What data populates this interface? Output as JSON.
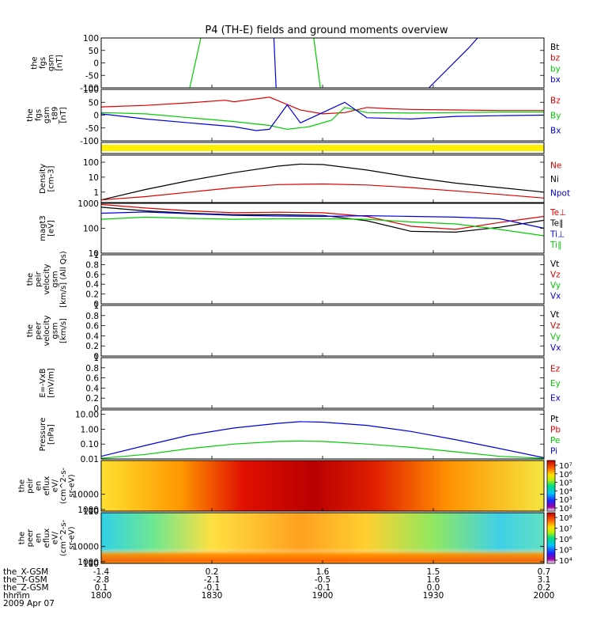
{
  "title": "P4 (TH-E) fields and ground moments overview",
  "colors": {
    "black": "#000000",
    "red": "#dd0000",
    "green": "#00cc00",
    "blue": "#0000dd",
    "yellow": "#ffee00"
  },
  "chart_data": [
    {
      "id": "fgs",
      "type": "line",
      "ylabel_lines": [
        "the",
        "fgs",
        "gsm",
        "[nT]"
      ],
      "ylim": [
        -100,
        100
      ],
      "yticks": [
        -100,
        -50,
        0,
        50,
        100
      ],
      "legend": [
        {
          "label": "Bt",
          "color": "black"
        },
        {
          "label": "bz",
          "color": "red"
        },
        {
          "label": "by",
          "color": "green"
        },
        {
          "label": "bx",
          "color": "blue"
        }
      ],
      "series": [
        {
          "color": "green",
          "points": [
            [
              0.2,
              -100
            ],
            [
              0.225,
              100
            ]
          ]
        },
        {
          "color": "blue",
          "points": [
            [
              0.39,
              100
            ],
            [
              0.395,
              -100
            ]
          ]
        },
        {
          "color": "green",
          "points": [
            [
              0.48,
              100
            ],
            [
              0.495,
              -100
            ]
          ]
        },
        {
          "color": "blue",
          "points": [
            [
              0.74,
              -100
            ],
            [
              0.83,
              60
            ],
            [
              0.85,
              100
            ]
          ]
        }
      ]
    },
    {
      "id": "fgs2",
      "type": "line",
      "ylabel_lines": [
        "the",
        "fgs",
        "gsm",
        "_t89",
        "[nT]"
      ],
      "ylim": [
        -100,
        100
      ],
      "yticks": [
        -100,
        -50,
        0,
        50,
        100
      ],
      "legend": [
        {
          "label": "Bz",
          "color": "red"
        },
        {
          "label": "By",
          "color": "green"
        },
        {
          "label": "Bx",
          "color": "blue"
        }
      ],
      "series": [
        {
          "color": "red",
          "points": [
            [
              0.0,
              32
            ],
            [
              0.1,
              38
            ],
            [
              0.2,
              48
            ],
            [
              0.28,
              58
            ],
            [
              0.3,
              52
            ],
            [
              0.38,
              70
            ],
            [
              0.45,
              20
            ],
            [
              0.5,
              5
            ],
            [
              0.55,
              10
            ],
            [
              0.6,
              30
            ],
            [
              0.65,
              25
            ],
            [
              0.7,
              22
            ],
            [
              0.8,
              20
            ],
            [
              0.9,
              18
            ],
            [
              1.0,
              18
            ]
          ]
        },
        {
          "color": "green",
          "points": [
            [
              0.0,
              10
            ],
            [
              0.1,
              5
            ],
            [
              0.2,
              -10
            ],
            [
              0.3,
              -25
            ],
            [
              0.38,
              -40
            ],
            [
              0.42,
              -55
            ],
            [
              0.47,
              -45
            ],
            [
              0.52,
              -20
            ],
            [
              0.55,
              30
            ],
            [
              0.6,
              10
            ],
            [
              0.7,
              8
            ],
            [
              0.8,
              10
            ],
            [
              0.9,
              12
            ],
            [
              1.0,
              12
            ]
          ]
        },
        {
          "color": "blue",
          "points": [
            [
              0.0,
              5
            ],
            [
              0.1,
              -15
            ],
            [
              0.2,
              -30
            ],
            [
              0.3,
              -45
            ],
            [
              0.35,
              -60
            ],
            [
              0.38,
              -55
            ],
            [
              0.42,
              40
            ],
            [
              0.45,
              -30
            ],
            [
              0.5,
              10
            ],
            [
              0.55,
              50
            ],
            [
              0.6,
              -10
            ],
            [
              0.7,
              -15
            ],
            [
              0.8,
              -5
            ],
            [
              0.9,
              -2
            ],
            [
              1.0,
              0
            ]
          ]
        }
      ]
    },
    {
      "id": "flag",
      "type": "band",
      "color": "yellow"
    },
    {
      "id": "density",
      "type": "line",
      "log": true,
      "ylabel_lines": [
        "Density",
        "[cm-3]"
      ],
      "ylim": [
        0.2,
        300
      ],
      "yticks": [
        1,
        10,
        100
      ],
      "legend": [
        {
          "label": "Ne",
          "color": "red"
        },
        {
          "label": "Ni",
          "color": "black"
        },
        {
          "label": "Npot",
          "color": "blue"
        }
      ],
      "series": [
        {
          "color": "black",
          "points": [
            [
              0.0,
              0.3
            ],
            [
              0.1,
              1.5
            ],
            [
              0.2,
              6
            ],
            [
              0.3,
              20
            ],
            [
              0.4,
              55
            ],
            [
              0.45,
              75
            ],
            [
              0.5,
              70
            ],
            [
              0.6,
              30
            ],
            [
              0.7,
              10
            ],
            [
              0.8,
              4
            ],
            [
              0.9,
              2
            ],
            [
              1.0,
              1
            ]
          ]
        },
        {
          "color": "red",
          "points": [
            [
              0.0,
              0.3
            ],
            [
              0.1,
              0.5
            ],
            [
              0.2,
              1
            ],
            [
              0.3,
              2
            ],
            [
              0.4,
              3.2
            ],
            [
              0.5,
              3.5
            ],
            [
              0.6,
              3
            ],
            [
              0.7,
              2
            ],
            [
              0.8,
              1.2
            ],
            [
              0.9,
              0.7
            ],
            [
              1.0,
              0.4
            ]
          ]
        }
      ]
    },
    {
      "id": "temp",
      "type": "line",
      "log": true,
      "ylabel_lines": [
        "magt3",
        "[eV]"
      ],
      "ylim": [
        10,
        1000
      ],
      "yticks": [
        10,
        100,
        1000
      ],
      "legend": [
        {
          "label": "Te⊥",
          "color": "red"
        },
        {
          "label": "Te∥",
          "color": "black"
        },
        {
          "label": "Ti⊥",
          "color": "blue"
        },
        {
          "label": "Ti∥",
          "color": "green"
        }
      ],
      "series": [
        {
          "color": "red",
          "points": [
            [
              0.0,
              900
            ],
            [
              0.1,
              650
            ],
            [
              0.2,
              500
            ],
            [
              0.3,
              420
            ],
            [
              0.4,
              440
            ],
            [
              0.5,
              420
            ],
            [
              0.6,
              300
            ],
            [
              0.7,
              120
            ],
            [
              0.8,
              90
            ],
            [
              0.9,
              170
            ],
            [
              1.0,
              300
            ]
          ]
        },
        {
          "color": "black",
          "points": [
            [
              0.0,
              700
            ],
            [
              0.1,
              500
            ],
            [
              0.2,
              400
            ],
            [
              0.3,
              350
            ],
            [
              0.4,
              350
            ],
            [
              0.5,
              330
            ],
            [
              0.6,
              200
            ],
            [
              0.7,
              75
            ],
            [
              0.8,
              70
            ],
            [
              0.9,
              110
            ],
            [
              1.0,
              210
            ]
          ]
        },
        {
          "color": "blue",
          "points": [
            [
              0.0,
              400
            ],
            [
              0.1,
              450
            ],
            [
              0.2,
              380
            ],
            [
              0.3,
              330
            ],
            [
              0.4,
              310
            ],
            [
              0.5,
              300
            ],
            [
              0.6,
              320
            ],
            [
              0.7,
              300
            ],
            [
              0.8,
              280
            ],
            [
              0.9,
              240
            ],
            [
              1.0,
              100
            ]
          ]
        },
        {
          "color": "green",
          "points": [
            [
              0.0,
              230
            ],
            [
              0.1,
              280
            ],
            [
              0.2,
              250
            ],
            [
              0.3,
              230
            ],
            [
              0.4,
              240
            ],
            [
              0.5,
              240
            ],
            [
              0.6,
              230
            ],
            [
              0.7,
              180
            ],
            [
              0.8,
              150
            ],
            [
              0.9,
              90
            ],
            [
              1.0,
              50
            ]
          ]
        }
      ]
    },
    {
      "id": "peir_vel",
      "type": "line",
      "ylabel_lines": [
        "the",
        "peir",
        "velocity",
        "gsm",
        "[km/s] (All Qs)"
      ],
      "ylim": [
        0,
        1
      ],
      "yticks": [
        0.0,
        0.2,
        0.4,
        0.6,
        0.8,
        1.0
      ],
      "legend": [
        {
          "label": "Vt",
          "color": "black"
        },
        {
          "label": "Vz",
          "color": "red"
        },
        {
          "label": "Vy",
          "color": "green"
        },
        {
          "label": "Vx",
          "color": "blue"
        }
      ],
      "series": []
    },
    {
      "id": "peer_vel",
      "type": "line",
      "ylabel_lines": [
        "the",
        "peer",
        "velocity",
        "gsm",
        "[km/s]"
      ],
      "ylim": [
        0,
        1
      ],
      "yticks": [
        0.0,
        0.2,
        0.4,
        0.6,
        0.8,
        1.0
      ],
      "legend": [
        {
          "label": "Vt",
          "color": "black"
        },
        {
          "label": "Vz",
          "color": "red"
        },
        {
          "label": "Vy",
          "color": "green"
        },
        {
          "label": "Vx",
          "color": "blue"
        }
      ],
      "series": []
    },
    {
      "id": "efield",
      "type": "line",
      "ylabel_lines": [
        "E=-VxB",
        "[mV/m]"
      ],
      "ylim": [
        0,
        1
      ],
      "yticks": [
        0.0,
        0.2,
        0.4,
        0.6,
        0.8,
        1.0
      ],
      "legend": [
        {
          "label": "Ez",
          "color": "red"
        },
        {
          "label": "Ey",
          "color": "green"
        },
        {
          "label": "Ex",
          "color": "blue"
        }
      ],
      "series": []
    },
    {
      "id": "pressure",
      "type": "line",
      "log": true,
      "ylabel_lines": [
        "Pressure",
        "[nPa]"
      ],
      "ylim": [
        0.01,
        20
      ],
      "yticks": [
        0.01,
        0.1,
        1,
        10
      ],
      "ytick_labels": [
        "0.01",
        "0.10",
        "1.00",
        "10.00"
      ],
      "legend": [
        {
          "label": "Pt",
          "color": "black"
        },
        {
          "label": "Pb",
          "color": "red"
        },
        {
          "label": "Pe",
          "color": "green"
        },
        {
          "label": "Pi",
          "color": "blue"
        }
      ],
      "series": [
        {
          "color": "blue",
          "points": [
            [
              0.0,
              0.015
            ],
            [
              0.1,
              0.08
            ],
            [
              0.2,
              0.4
            ],
            [
              0.3,
              1.2
            ],
            [
              0.4,
              2.5
            ],
            [
              0.45,
              3.2
            ],
            [
              0.5,
              3.0
            ],
            [
              0.6,
              1.8
            ],
            [
              0.7,
              0.7
            ],
            [
              0.8,
              0.2
            ],
            [
              0.9,
              0.05
            ],
            [
              1.0,
              0.012
            ]
          ]
        },
        {
          "color": "green",
          "points": [
            [
              0.0,
              0.011
            ],
            [
              0.1,
              0.02
            ],
            [
              0.2,
              0.05
            ],
            [
              0.3,
              0.1
            ],
            [
              0.4,
              0.15
            ],
            [
              0.45,
              0.16
            ],
            [
              0.5,
              0.15
            ],
            [
              0.6,
              0.1
            ],
            [
              0.7,
              0.06
            ],
            [
              0.8,
              0.03
            ],
            [
              0.9,
              0.015
            ],
            [
              1.0,
              0.011
            ]
          ]
        }
      ]
    },
    {
      "id": "peir_spec",
      "type": "heatmap",
      "variant": "ion",
      "ylabel_lines": [
        "the",
        "peir",
        "en",
        "eflux",
        "eV/",
        "(cm^2-s-",
        "sr-eV)"
      ],
      "ylim": [
        10,
        30000
      ],
      "yticks": [
        10,
        100,
        1000,
        10000
      ],
      "cbar_labels": [
        "10⁷",
        "10⁶",
        "10⁵",
        "10⁴",
        "10³",
        "10²"
      ]
    },
    {
      "id": "peer_spec",
      "type": "heatmap",
      "variant": "electron",
      "ylabel_lines": [
        "the",
        "peer",
        "en",
        "eflux",
        "eV/",
        "(cm^2-s-",
        "sr-eV)"
      ],
      "ylim": [
        5,
        30000
      ],
      "yticks": [
        10,
        100,
        1000,
        10000
      ],
      "cbar_labels": [
        "10⁸",
        "10⁷",
        "10⁶",
        "10⁵",
        "10⁴"
      ]
    }
  ],
  "xaxis": {
    "ticks": [
      {
        "pos": 0.0,
        "x": "-1.4",
        "y": "-2.8",
        "z": "0.1",
        "t": "1800"
      },
      {
        "pos": 0.25,
        "x": "0.2",
        "y": "-2.1",
        "z": "-0.1",
        "t": "1830"
      },
      {
        "pos": 0.5,
        "x": "1.6",
        "y": "-0.5",
        "z": "-0.1",
        "t": "1900"
      },
      {
        "pos": 0.75,
        "x": "1.5",
        "y": "1.6",
        "z": "0.0",
        "t": "1930"
      },
      {
        "pos": 1.0,
        "x": "0.7",
        "y": "3.1",
        "z": "0.2",
        "t": "2000"
      }
    ],
    "row_labels": [
      "the_X-GSM",
      "the_Y-GSM",
      "the_Z-GSM",
      "hhmm",
      "2009 Apr 07"
    ]
  }
}
